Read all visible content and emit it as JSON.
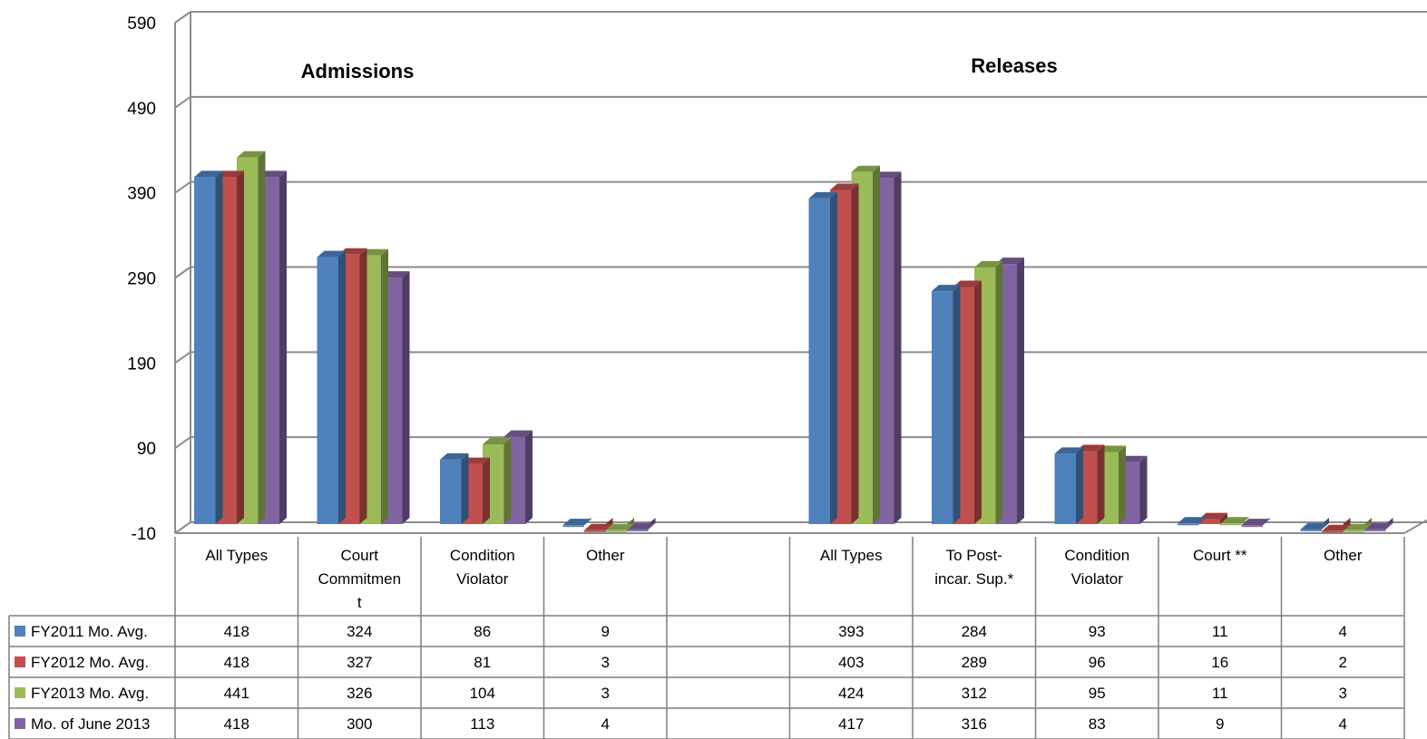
{
  "chart_data": {
    "type": "bar",
    "sections": [
      {
        "title": "Admissions",
        "categories": [
          "All Types",
          "Court Commitment",
          "Condition Violator",
          "Other"
        ]
      },
      {
        "title": "Releases",
        "categories": [
          "All Types",
          "To Post-incar. Sup.*",
          "Condition Violator",
          "Court **",
          "Other"
        ]
      }
    ],
    "category_display": [
      [
        "All Types"
      ],
      [
        "Court",
        "Commitmen",
        "t"
      ],
      [
        "Condition",
        "Violator"
      ],
      [
        "Other"
      ],
      [],
      [
        "All Types"
      ],
      [
        "To Post-",
        "incar. Sup.*"
      ],
      [
        "Condition",
        "Violator"
      ],
      [
        "Court **"
      ],
      [
        "Other"
      ]
    ],
    "series": [
      {
        "name": "FY2011 Mo. Avg.",
        "color": "#4F81BD",
        "values": [
          418,
          324,
          86,
          9,
          null,
          393,
          284,
          93,
          11,
          4
        ]
      },
      {
        "name": "FY2012 Mo. Avg.",
        "color": "#C0504D",
        "values": [
          418,
          327,
          81,
          3,
          null,
          403,
          289,
          96,
          16,
          2
        ]
      },
      {
        "name": "FY2013 Mo. Avg.",
        "color": "#9BBB59",
        "values": [
          441,
          326,
          104,
          3,
          null,
          424,
          312,
          95,
          11,
          3
        ]
      },
      {
        "name": "Mo. of June 2013",
        "color": "#8064A2",
        "values": [
          418,
          300,
          113,
          4,
          null,
          417,
          316,
          83,
          9,
          4
        ]
      }
    ],
    "ylim": [
      -10,
      590
    ],
    "yticks": [
      590,
      490,
      390,
      290,
      190,
      90,
      -10
    ],
    "grid": true,
    "legend": "data-table",
    "xlabel": "",
    "ylabel": ""
  }
}
